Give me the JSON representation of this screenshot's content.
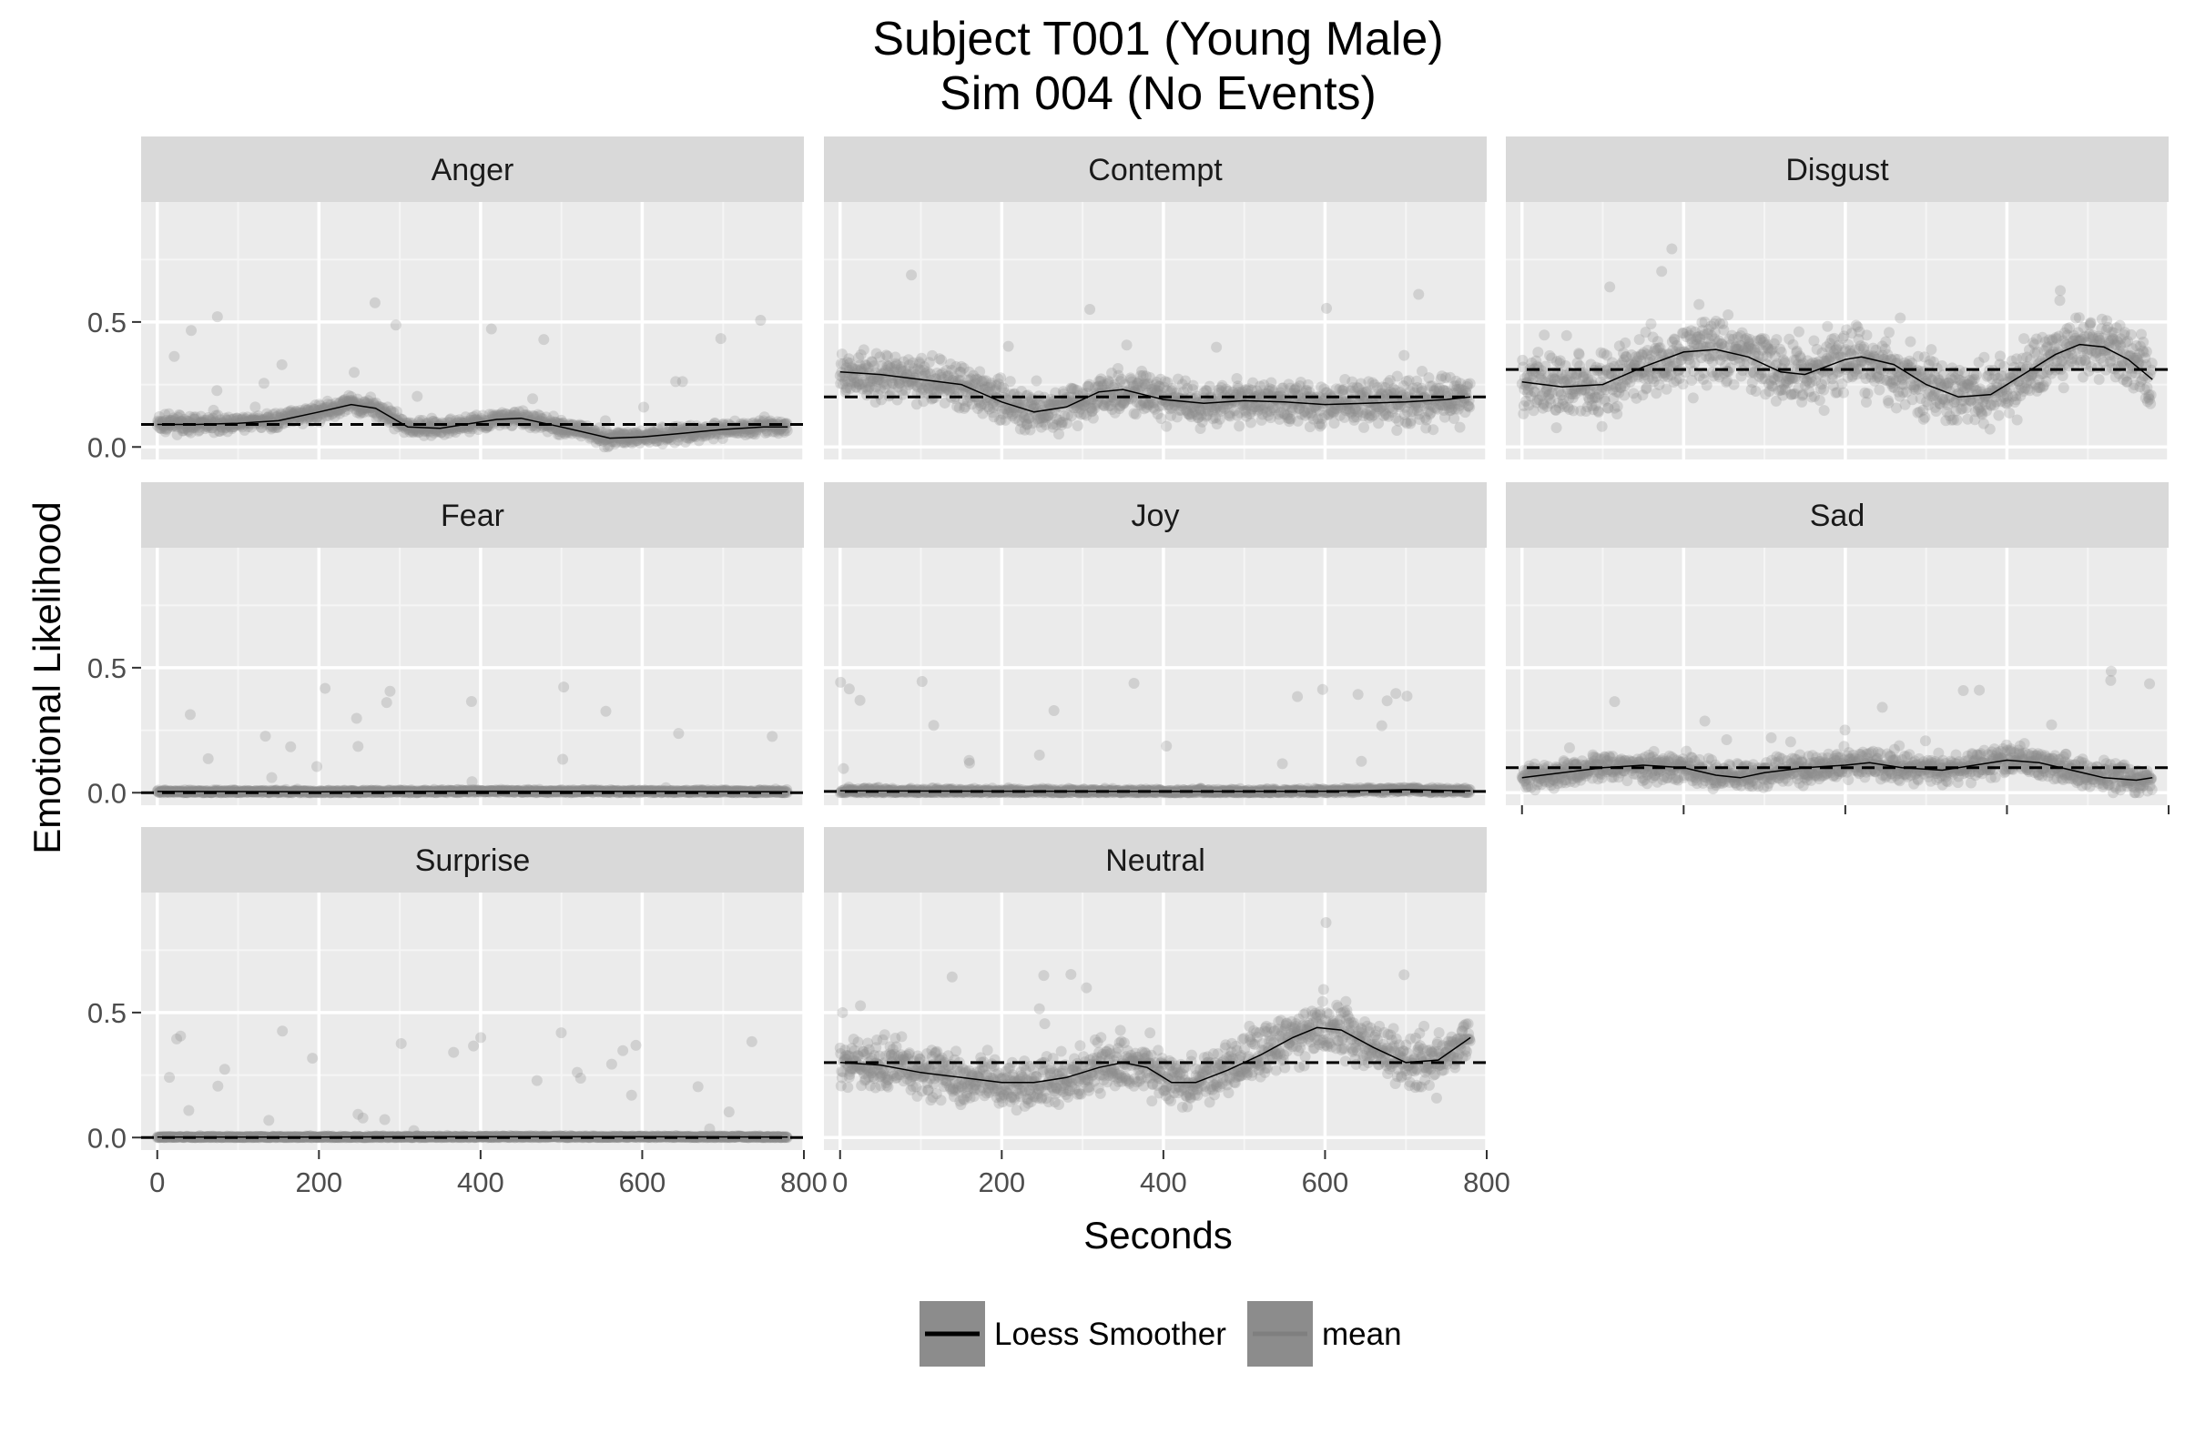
{
  "chart_data": {
    "type": "scatter",
    "title": [
      "Subject T001 (Young Male)",
      "Sim 004 (No Events)"
    ],
    "xlabel": "Seconds",
    "ylabel": "Emotional Likelihood",
    "xlim": [
      -20,
      800
    ],
    "ylim": [
      -0.05,
      0.98
    ],
    "x_ticks": [
      0,
      200,
      400,
      600,
      800
    ],
    "y_ticks": [
      0.0,
      0.5
    ],
    "y_tick_labels": [
      "0.0",
      "0.5"
    ],
    "grid": true,
    "legend_position": "bottom",
    "legend": [
      {
        "name": "Loess Smoother",
        "color": "#000000"
      },
      {
        "name": "mean",
        "color": "#7f7f7f"
      }
    ],
    "colors": {
      "points": "#8c8c8c",
      "smoother": "#000000",
      "mean_line": "#000000",
      "panel_bg": "#ebebeb",
      "strip_bg": "#d9d9d9"
    },
    "facets": [
      {
        "name": "Anger",
        "mean": 0.09,
        "band": 0.025,
        "noise": 0.035,
        "loess": [
          [
            0,
            0.09
          ],
          [
            50,
            0.09
          ],
          [
            100,
            0.095
          ],
          [
            150,
            0.105
          ],
          [
            200,
            0.14
          ],
          [
            240,
            0.17
          ],
          [
            270,
            0.155
          ],
          [
            310,
            0.08
          ],
          [
            350,
            0.075
          ],
          [
            420,
            0.11
          ],
          [
            450,
            0.115
          ],
          [
            500,
            0.08
          ],
          [
            560,
            0.035
          ],
          [
            600,
            0.04
          ],
          [
            650,
            0.055
          ],
          [
            700,
            0.07
          ],
          [
            750,
            0.08
          ],
          [
            780,
            0.08
          ]
        ]
      },
      {
        "name": "Contempt",
        "mean": 0.2,
        "band": 0.07,
        "noise": 0.09,
        "loess": [
          [
            0,
            0.3
          ],
          [
            50,
            0.29
          ],
          [
            100,
            0.27
          ],
          [
            150,
            0.25
          ],
          [
            200,
            0.18
          ],
          [
            240,
            0.14
          ],
          [
            280,
            0.16
          ],
          [
            320,
            0.22
          ],
          [
            350,
            0.23
          ],
          [
            400,
            0.19
          ],
          [
            450,
            0.175
          ],
          [
            500,
            0.185
          ],
          [
            550,
            0.18
          ],
          [
            600,
            0.17
          ],
          [
            650,
            0.175
          ],
          [
            700,
            0.18
          ],
          [
            750,
            0.19
          ],
          [
            780,
            0.2
          ]
        ]
      },
      {
        "name": "Disgust",
        "mean": 0.31,
        "band": 0.12,
        "noise": 0.1,
        "loess": [
          [
            0,
            0.26
          ],
          [
            50,
            0.24
          ],
          [
            100,
            0.25
          ],
          [
            150,
            0.32
          ],
          [
            200,
            0.38
          ],
          [
            240,
            0.39
          ],
          [
            280,
            0.36
          ],
          [
            320,
            0.3
          ],
          [
            350,
            0.29
          ],
          [
            400,
            0.35
          ],
          [
            420,
            0.36
          ],
          [
            460,
            0.33
          ],
          [
            500,
            0.25
          ],
          [
            540,
            0.2
          ],
          [
            580,
            0.21
          ],
          [
            620,
            0.29
          ],
          [
            660,
            0.37
          ],
          [
            690,
            0.41
          ],
          [
            720,
            0.4
          ],
          [
            750,
            0.35
          ],
          [
            780,
            0.27
          ]
        ]
      },
      {
        "name": "Fear",
        "mean": 0.0,
        "band": 0.005,
        "noise": 0.008,
        "loess": [
          [
            0,
            0.005
          ],
          [
            200,
            0.004
          ],
          [
            400,
            0.006
          ],
          [
            600,
            0.005
          ],
          [
            780,
            0.004
          ]
        ]
      },
      {
        "name": "Joy",
        "mean": 0.005,
        "band": 0.008,
        "noise": 0.012,
        "loess": [
          [
            0,
            0.008
          ],
          [
            200,
            0.006
          ],
          [
            400,
            0.005
          ],
          [
            600,
            0.006
          ],
          [
            700,
            0.012
          ],
          [
            780,
            0.007
          ]
        ]
      },
      {
        "name": "Sad",
        "mean": 0.1,
        "band": 0.045,
        "noise": 0.055,
        "loess": [
          [
            0,
            0.06
          ],
          [
            50,
            0.08
          ],
          [
            100,
            0.1
          ],
          [
            150,
            0.11
          ],
          [
            200,
            0.1
          ],
          [
            240,
            0.07
          ],
          [
            270,
            0.06
          ],
          [
            300,
            0.08
          ],
          [
            350,
            0.1
          ],
          [
            400,
            0.11
          ],
          [
            430,
            0.12
          ],
          [
            470,
            0.1
          ],
          [
            520,
            0.09
          ],
          [
            560,
            0.11
          ],
          [
            600,
            0.13
          ],
          [
            640,
            0.12
          ],
          [
            680,
            0.09
          ],
          [
            720,
            0.06
          ],
          [
            760,
            0.05
          ],
          [
            780,
            0.06
          ]
        ]
      },
      {
        "name": "Surprise",
        "mean": 0.0,
        "band": 0.003,
        "noise": 0.005,
        "loess": [
          [
            0,
            0.002
          ],
          [
            200,
            0.002
          ],
          [
            400,
            0.003
          ],
          [
            600,
            0.003
          ],
          [
            780,
            0.002
          ]
        ]
      },
      {
        "name": "Neutral",
        "mean": 0.3,
        "band": 0.09,
        "noise": 0.09,
        "loess": [
          [
            0,
            0.3
          ],
          [
            50,
            0.29
          ],
          [
            100,
            0.26
          ],
          [
            150,
            0.24
          ],
          [
            200,
            0.22
          ],
          [
            240,
            0.22
          ],
          [
            280,
            0.24
          ],
          [
            320,
            0.28
          ],
          [
            350,
            0.3
          ],
          [
            380,
            0.28
          ],
          [
            410,
            0.22
          ],
          [
            440,
            0.22
          ],
          [
            480,
            0.27
          ],
          [
            520,
            0.33
          ],
          [
            560,
            0.4
          ],
          [
            590,
            0.44
          ],
          [
            620,
            0.43
          ],
          [
            660,
            0.36
          ],
          [
            700,
            0.3
          ],
          [
            740,
            0.31
          ],
          [
            780,
            0.4
          ]
        ]
      }
    ]
  }
}
